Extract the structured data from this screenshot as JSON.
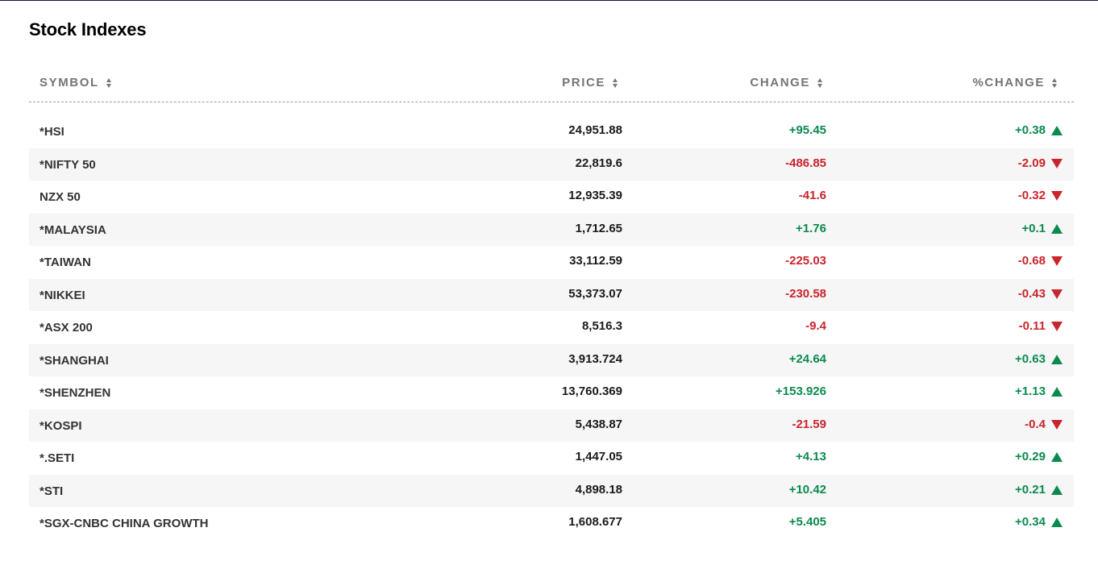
{
  "page": {
    "title": "Stock Indexes"
  },
  "colors": {
    "positive": "#0b8a4f",
    "negative": "#c8252c",
    "header_text": "#747474",
    "row_alt_bg": "#f6f6f6",
    "top_bar": "#0a1a3a"
  },
  "table": {
    "columns": [
      {
        "key": "symbol",
        "label": "SYMBOL",
        "sort_icon": "sort-icon"
      },
      {
        "key": "price",
        "label": "PRICE",
        "sort_icon": "sort-icon"
      },
      {
        "key": "change",
        "label": "CHANGE",
        "sort_icon": "sort-icon"
      },
      {
        "key": "pchange",
        "label": "%CHANGE",
        "sort_icon": "sort-icon"
      }
    ],
    "rows": [
      {
        "symbol": "*HSI",
        "price": "24,951.88",
        "change": "+95.45",
        "pchange": "+0.38",
        "direction": "up"
      },
      {
        "symbol": "*NIFTY 50",
        "price": "22,819.6",
        "change": "-486.85",
        "pchange": "-2.09",
        "direction": "down"
      },
      {
        "symbol": "NZX 50",
        "price": "12,935.39",
        "change": "-41.6",
        "pchange": "-0.32",
        "direction": "down"
      },
      {
        "symbol": "*MALAYSIA",
        "price": "1,712.65",
        "change": "+1.76",
        "pchange": "+0.1",
        "direction": "up"
      },
      {
        "symbol": "*TAIWAN",
        "price": "33,112.59",
        "change": "-225.03",
        "pchange": "-0.68",
        "direction": "down"
      },
      {
        "symbol": "*NIKKEI",
        "price": "53,373.07",
        "change": "-230.58",
        "pchange": "-0.43",
        "direction": "down"
      },
      {
        "symbol": "*ASX 200",
        "price": "8,516.3",
        "change": "-9.4",
        "pchange": "-0.11",
        "direction": "down"
      },
      {
        "symbol": "*SHANGHAI",
        "price": "3,913.724",
        "change": "+24.64",
        "pchange": "+0.63",
        "direction": "up"
      },
      {
        "symbol": "*SHENZHEN",
        "price": "13,760.369",
        "change": "+153.926",
        "pchange": "+1.13",
        "direction": "up"
      },
      {
        "symbol": "*KOSPI",
        "price": "5,438.87",
        "change": "-21.59",
        "pchange": "-0.4",
        "direction": "down"
      },
      {
        "symbol": "*.SETI",
        "price": "1,447.05",
        "change": "+4.13",
        "pchange": "+0.29",
        "direction": "up"
      },
      {
        "symbol": "*STI",
        "price": "4,898.18",
        "change": "+10.42",
        "pchange": "+0.21",
        "direction": "up"
      },
      {
        "symbol": "*SGX-CNBC CHINA GROWTH",
        "price": "1,608.677",
        "change": "+5.405",
        "pchange": "+0.34",
        "direction": "up"
      }
    ]
  }
}
